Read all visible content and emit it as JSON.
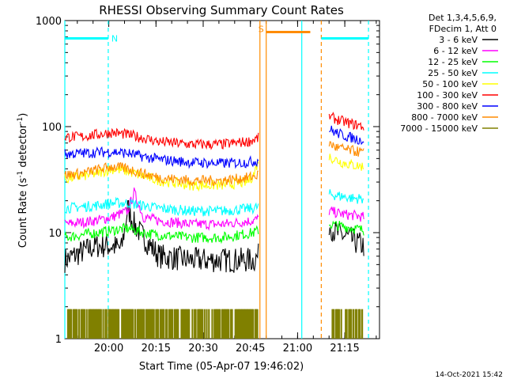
{
  "chart_data": {
    "type": "line",
    "title": "RHESSI Observing Summary Count Rates",
    "xlabel": "Start Time (05-Apr-07 19:46:02)",
    "ylabel_main": "Count Rate (s",
    "ylabel_sup1": "-1",
    "ylabel_mid": " detector",
    "ylabel_sup2": "-1",
    "ylabel_end": ")",
    "y_scale": "log",
    "ylim": [
      1,
      1000
    ],
    "xlim_minutes": [
      0,
      100
    ],
    "x_ticks": [
      {
        "label": "20:00",
        "minutes": 13.97
      },
      {
        "label": "20:15",
        "minutes": 28.97
      },
      {
        "label": "20:30",
        "minutes": 43.97
      },
      {
        "label": "20:45",
        "minutes": 58.97
      },
      {
        "label": "21:00",
        "minutes": 73.97
      },
      {
        "label": "21:15",
        "minutes": 88.97
      }
    ],
    "y_ticks": [
      {
        "label": "1000",
        "value": 1000
      },
      {
        "label": "100",
        "value": 100
      },
      {
        "label": "10",
        "value": 10
      },
      {
        "label": "1",
        "value": 1
      }
    ],
    "legend_header": [
      "Det 1,3,4,5,6,9,",
      "FDecim 1, Att 0"
    ],
    "legend_position": "right",
    "series": [
      {
        "name": "3 - 6 keV",
        "color": "#000000",
        "segments": [
          {
            "x": [
              0,
              5,
              10,
              15,
              18,
              20,
              22,
              25,
              30,
              40,
              50,
              60,
              61.5
            ],
            "y": [
              5.5,
              6.5,
              7.5,
              7.5,
              7,
              17,
              12,
              9,
              6,
              5.5,
              5.5,
              5.5,
              6
            ]
          },
          {
            "x": [
              84,
              86,
              90,
              93,
              95
            ],
            "y": [
              12,
              10,
              9,
              8,
              7.5
            ]
          }
        ]
      },
      {
        "name": "6 - 12 keV",
        "color": "#ff00ff",
        "segments": [
          {
            "x": [
              0,
              10,
              15,
              20,
              22,
              25,
              30,
              40,
              50,
              60,
              61.5
            ],
            "y": [
              12,
              13,
              14,
              16,
              24,
              14,
              13,
              12,
              12,
              13,
              13.5
            ]
          },
          {
            "x": [
              84,
              88,
              92,
              95
            ],
            "y": [
              16,
              15,
              14.5,
              14
            ]
          }
        ]
      },
      {
        "name": "12 - 25 keV",
        "color": "#00ff00",
        "segments": [
          {
            "x": [
              0,
              10,
              15,
              20,
              25,
              30,
              40,
              50,
              60,
              61.5
            ],
            "y": [
              9,
              10,
              10.5,
              11,
              10,
              9.5,
              9,
              9,
              10,
              10.5
            ]
          },
          {
            "x": [
              84,
              88,
              92,
              95
            ],
            "y": [
              12,
              11.5,
              11,
              10.5
            ]
          }
        ]
      },
      {
        "name": "25 - 50 keV",
        "color": "#00ffff",
        "segments": [
          {
            "x": [
              0,
              10,
              15,
              20,
              25,
              30,
              40,
              50,
              60,
              61.5
            ],
            "y": [
              17,
              18,
              19,
              19,
              18,
              17,
              16,
              16,
              17,
              17.5
            ]
          },
          {
            "x": [
              84,
              88,
              92,
              95
            ],
            "y": [
              23,
              22,
              21,
              21
            ]
          }
        ]
      },
      {
        "name": "50 - 100 keV",
        "color": "#ffff00",
        "segments": [
          {
            "x": [
              0,
              10,
              15,
              20,
              25,
              30,
              40,
              50,
              58,
              60,
              61.5
            ],
            "y": [
              32,
              36,
              40,
              38,
              34,
              31,
              28,
              28,
              30,
              35,
              48
            ]
          },
          {
            "x": [
              84,
              88,
              92,
              95
            ],
            "y": [
              52,
              46,
              43,
              42
            ]
          }
        ]
      },
      {
        "name": "100 - 300 keV",
        "color": "#ff0000",
        "segments": [
          {
            "x": [
              0,
              5,
              10,
              15,
              20,
              25,
              30,
              40,
              50,
              58,
              60,
              61.5
            ],
            "y": [
              80,
              80,
              84,
              88,
              84,
              78,
              72,
              68,
              68,
              72,
              75,
              78
            ]
          },
          {
            "x": [
              84,
              86,
              90,
              95
            ],
            "y": [
              125,
              118,
              108,
              100
            ]
          }
        ]
      },
      {
        "name": "300 - 800 keV",
        "color": "#0000ff",
        "segments": [
          {
            "x": [
              0,
              5,
              10,
              15,
              20,
              25,
              30,
              40,
              50,
              58,
              60,
              61.5
            ],
            "y": [
              55,
              56,
              57,
              58,
              56,
              52,
              49,
              46,
              45,
              46,
              47,
              48
            ]
          },
          {
            "x": [
              84,
              86,
              90,
              95
            ],
            "y": [
              95,
              88,
              80,
              74
            ]
          }
        ]
      },
      {
        "name": "800 - 7000 keV",
        "color": "#ff8c00",
        "segments": [
          {
            "x": [
              0,
              5,
              10,
              15,
              20,
              25,
              30,
              40,
              50,
              58,
              60,
              61.5
            ],
            "y": [
              35,
              36,
              39,
              42,
              40,
              36,
              33,
              31,
              31,
              33,
              34,
              35
            ]
          },
          {
            "x": [
              84,
              86,
              90,
              95
            ],
            "y": [
              70,
              64,
              60,
              57
            ]
          }
        ]
      },
      {
        "name": "7000 - 15000 keV",
        "color": "#808000",
        "segments": [
          {
            "x": [
              1,
              61.5
            ],
            "y": [
              1.9,
              1.9
            ]
          },
          {
            "x": [
              84,
              95
            ],
            "y": [
              1.9,
              1.9
            ]
          }
        ]
      }
    ],
    "bars": [
      {
        "label": "N",
        "color": "#00ffff",
        "x_start": 0,
        "x_end": 13.8,
        "y": 680
      },
      {
        "label": "S",
        "color": "#ff8c00",
        "x_start": 64,
        "x_end": 78,
        "y": 780
      },
      {
        "label": "",
        "color": "#00ffff",
        "x_start": 81.5,
        "x_end": 96.5,
        "y": 680
      }
    ],
    "vlines": [
      {
        "x": 13.8,
        "color": "#00ffff",
        "style": "dashed"
      },
      {
        "x": 64,
        "color": "#ff8c00",
        "style": "solid"
      },
      {
        "x": 62,
        "color": "#ff8c00",
        "style": "solid"
      },
      {
        "x": 75.3,
        "color": "#00ffff",
        "style": "solid"
      },
      {
        "x": 81.5,
        "color": "#ff8c00",
        "style": "dashed"
      },
      {
        "x": 96.5,
        "color": "#00ffff",
        "style": "dashed"
      },
      {
        "x": 0,
        "color": "#00ffff",
        "style": "solid"
      }
    ],
    "timestamp": "14-Oct-2021 15:42"
  }
}
